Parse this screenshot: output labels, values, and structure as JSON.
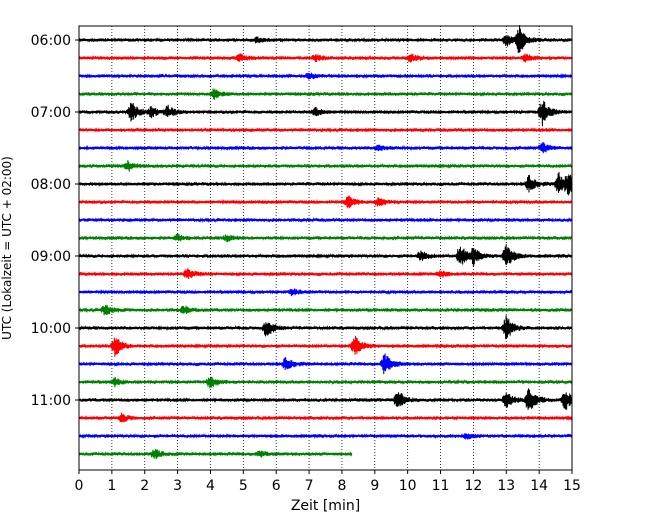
{
  "chart_data": {
    "type": "line",
    "title": "",
    "xlabel": "Zeit  [min]",
    "ylabel": "UTC (Lokalzeit = UTC + 02:00)",
    "xlim": [
      0,
      15
    ],
    "x_ticks": [
      "0",
      "1",
      "2",
      "3",
      "4",
      "5",
      "6",
      "7",
      "8",
      "9",
      "10",
      "11",
      "12",
      "13",
      "14",
      "15"
    ],
    "y_ticks": [
      "06:00",
      "07:00",
      "08:00",
      "09:00",
      "10:00",
      "11:00"
    ],
    "grid": {
      "vertical": true,
      "horizontal": false,
      "style": "dotted"
    },
    "trace_colors": [
      "#000000",
      "#ff0000",
      "#0000ff",
      "#008000"
    ],
    "row_interval_min": 15,
    "rows": [
      {
        "start": "06:00",
        "end_min": 15,
        "events": [
          {
            "t": 5.4,
            "amp": 3
          },
          {
            "t": 13.0,
            "amp": 6
          },
          {
            "t": 13.4,
            "amp": 14
          }
        ]
      },
      {
        "start": "06:15",
        "end_min": 15,
        "events": [
          {
            "t": 4.9,
            "amp": 4
          },
          {
            "t": 7.2,
            "amp": 3
          },
          {
            "t": 10.1,
            "amp": 4
          },
          {
            "t": 13.6,
            "amp": 4
          }
        ]
      },
      {
        "start": "06:30",
        "end_min": 15,
        "events": [
          {
            "t": 7.0,
            "amp": 3
          }
        ]
      },
      {
        "start": "06:45",
        "end_min": 15,
        "events": [
          {
            "t": 4.1,
            "amp": 5
          }
        ]
      },
      {
        "start": "07:00",
        "end_min": 15,
        "events": [
          {
            "t": 1.6,
            "amp": 10
          },
          {
            "t": 2.2,
            "amp": 5
          },
          {
            "t": 2.7,
            "amp": 6
          },
          {
            "t": 7.2,
            "amp": 4
          },
          {
            "t": 14.1,
            "amp": 13
          }
        ]
      },
      {
        "start": "07:15",
        "end_min": 15,
        "events": []
      },
      {
        "start": "07:30",
        "end_min": 15,
        "events": [
          {
            "t": 9.1,
            "amp": 3
          },
          {
            "t": 14.1,
            "amp": 5
          }
        ]
      },
      {
        "start": "07:45",
        "end_min": 15,
        "events": [
          {
            "t": 1.5,
            "amp": 5
          }
        ]
      },
      {
        "start": "08:00",
        "end_min": 15,
        "events": [
          {
            "t": 13.7,
            "amp": 9
          },
          {
            "t": 14.6,
            "amp": 11
          },
          {
            "t": 14.9,
            "amp": 9
          }
        ]
      },
      {
        "start": "08:15",
        "end_min": 15,
        "events": [
          {
            "t": 8.2,
            "amp": 6
          },
          {
            "t": 9.1,
            "amp": 4
          }
        ]
      },
      {
        "start": "08:30",
        "end_min": 15,
        "events": []
      },
      {
        "start": "08:45",
        "end_min": 15,
        "events": [
          {
            "t": 3.0,
            "amp": 3
          },
          {
            "t": 4.5,
            "amp": 3
          }
        ]
      },
      {
        "start": "09:00",
        "end_min": 15,
        "events": [
          {
            "t": 10.4,
            "amp": 5
          },
          {
            "t": 11.6,
            "amp": 11
          },
          {
            "t": 12.0,
            "amp": 8
          },
          {
            "t": 13.0,
            "amp": 12
          }
        ]
      },
      {
        "start": "09:15",
        "end_min": 15,
        "events": [
          {
            "t": 3.3,
            "amp": 5
          },
          {
            "t": 11.0,
            "amp": 3
          }
        ]
      },
      {
        "start": "09:30",
        "end_min": 15,
        "events": [
          {
            "t": 6.5,
            "amp": 3
          }
        ]
      },
      {
        "start": "09:45",
        "end_min": 15,
        "events": [
          {
            "t": 0.8,
            "amp": 5
          },
          {
            "t": 3.2,
            "amp": 4
          }
        ]
      },
      {
        "start": "10:00",
        "end_min": 15,
        "events": [
          {
            "t": 5.7,
            "amp": 9
          },
          {
            "t": 13.0,
            "amp": 13
          }
        ]
      },
      {
        "start": "10:15",
        "end_min": 15,
        "events": [
          {
            "t": 1.1,
            "amp": 10
          },
          {
            "t": 8.4,
            "amp": 10
          }
        ]
      },
      {
        "start": "10:30",
        "end_min": 15,
        "events": [
          {
            "t": 6.3,
            "amp": 7
          },
          {
            "t": 9.3,
            "amp": 11
          }
        ]
      },
      {
        "start": "10:45",
        "end_min": 15,
        "events": [
          {
            "t": 1.1,
            "amp": 4
          },
          {
            "t": 4.0,
            "amp": 6
          }
        ]
      },
      {
        "start": "11:00",
        "end_min": 15,
        "events": [
          {
            "t": 9.7,
            "amp": 10
          },
          {
            "t": 13.0,
            "amp": 9
          },
          {
            "t": 13.7,
            "amp": 15
          },
          {
            "t": 14.8,
            "amp": 10
          }
        ]
      },
      {
        "start": "11:15",
        "end_min": 15,
        "events": [
          {
            "t": 1.3,
            "amp": 4
          }
        ]
      },
      {
        "start": "11:30",
        "end_min": 15,
        "events": [
          {
            "t": 11.8,
            "amp": 3
          }
        ]
      },
      {
        "start": "11:45",
        "end_min": 8.3,
        "events": [
          {
            "t": 2.3,
            "amp": 5
          },
          {
            "t": 5.5,
            "amp": 3
          }
        ]
      }
    ]
  }
}
